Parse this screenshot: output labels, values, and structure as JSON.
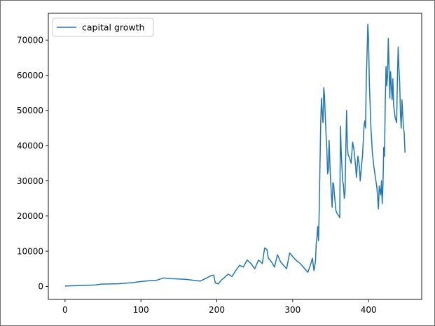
{
  "chart_data": {
    "type": "line",
    "title": "",
    "xlabel": "",
    "ylabel": "",
    "xlim": [
      -22,
      470
    ],
    "ylim": [
      -3700,
      77600
    ],
    "grid": false,
    "legend_position": "top-left",
    "xticks": [
      0,
      100,
      200,
      300,
      400
    ],
    "yticks": [
      0,
      10000,
      20000,
      30000,
      40000,
      50000,
      60000,
      70000
    ],
    "series": [
      {
        "name": "capital growth",
        "color": "#1f77b4",
        "points": [
          [
            0,
            100
          ],
          [
            20,
            250
          ],
          [
            40,
            400
          ],
          [
            48,
            650
          ],
          [
            70,
            750
          ],
          [
            90,
            1100
          ],
          [
            100,
            1400
          ],
          [
            110,
            1600
          ],
          [
            120,
            1700
          ],
          [
            130,
            2400
          ],
          [
            140,
            2200
          ],
          [
            160,
            2000
          ],
          [
            178,
            1500
          ],
          [
            185,
            2200
          ],
          [
            192,
            3000
          ],
          [
            196,
            3200
          ],
          [
            198,
            1000
          ],
          [
            202,
            700
          ],
          [
            206,
            1800
          ],
          [
            210,
            2500
          ],
          [
            215,
            3500
          ],
          [
            220,
            2800
          ],
          [
            225,
            4500
          ],
          [
            230,
            6000
          ],
          [
            235,
            5500
          ],
          [
            240,
            7500
          ],
          [
            245,
            6500
          ],
          [
            250,
            5000
          ],
          [
            255,
            7500
          ],
          [
            260,
            6500
          ],
          [
            263,
            10900
          ],
          [
            266,
            10500
          ],
          [
            268,
            8000
          ],
          [
            272,
            7000
          ],
          [
            276,
            5500
          ],
          [
            280,
            9000
          ],
          [
            284,
            7000
          ],
          [
            288,
            6000
          ],
          [
            292,
            5000
          ],
          [
            296,
            9500
          ],
          [
            300,
            8500
          ],
          [
            304,
            7500
          ],
          [
            310,
            6500
          ],
          [
            316,
            5000
          ],
          [
            320,
            4000
          ],
          [
            324,
            6500
          ],
          [
            326,
            8000
          ],
          [
            328,
            4500
          ],
          [
            330,
            7000
          ],
          [
            331,
            12000
          ],
          [
            332,
            14000
          ],
          [
            333,
            17000
          ],
          [
            334,
            13000
          ],
          [
            335,
            22000
          ],
          [
            336,
            35000
          ],
          [
            337,
            47000
          ],
          [
            338,
            53500
          ],
          [
            339,
            49000
          ],
          [
            340,
            46500
          ],
          [
            341,
            56500
          ],
          [
            342,
            54000
          ],
          [
            343,
            48000
          ],
          [
            344,
            43000
          ],
          [
            345,
            39000
          ],
          [
            346,
            32000
          ],
          [
            347,
            33000
          ],
          [
            348,
            41500
          ],
          [
            349,
            35000
          ],
          [
            350,
            30000
          ],
          [
            351,
            26000
          ],
          [
            352,
            22500
          ],
          [
            353,
            29500
          ],
          [
            354,
            29000
          ],
          [
            355,
            26000
          ],
          [
            357,
            21500
          ],
          [
            359,
            20500
          ],
          [
            361,
            20000
          ],
          [
            362,
            19500
          ],
          [
            363,
            45500
          ],
          [
            364,
            38000
          ],
          [
            365,
            33500
          ],
          [
            366,
            30000
          ],
          [
            367,
            28500
          ],
          [
            368,
            25000
          ],
          [
            369,
            27000
          ],
          [
            371,
            50000
          ],
          [
            372,
            40000
          ],
          [
            373,
            37500
          ],
          [
            375,
            36500
          ],
          [
            377,
            35000
          ],
          [
            379,
            41000
          ],
          [
            381,
            38500
          ],
          [
            383,
            34000
          ],
          [
            384,
            31000
          ],
          [
            386,
            37000
          ],
          [
            388,
            34000
          ],
          [
            389,
            30000
          ],
          [
            391,
            35000
          ],
          [
            392,
            37000
          ],
          [
            394,
            45500
          ],
          [
            395,
            47000
          ],
          [
            396,
            45000
          ],
          [
            397,
            59000
          ],
          [
            398,
            66000
          ],
          [
            399,
            74500
          ],
          [
            400,
            70000
          ],
          [
            401,
            58000
          ],
          [
            402,
            52000
          ],
          [
            403,
            45500
          ],
          [
            405,
            38000
          ],
          [
            407,
            34000
          ],
          [
            409,
            31000
          ],
          [
            411,
            28000
          ],
          [
            413,
            22000
          ],
          [
            414,
            28500
          ],
          [
            416,
            26000
          ],
          [
            417,
            30000
          ],
          [
            418,
            23500
          ],
          [
            419,
            29000
          ],
          [
            420,
            39500
          ],
          [
            421,
            37000
          ],
          [
            422,
            52000
          ],
          [
            423,
            62500
          ],
          [
            424,
            57000
          ],
          [
            425,
            60000
          ],
          [
            426,
            70500
          ],
          [
            427,
            62000
          ],
          [
            428,
            53500
          ],
          [
            429,
            61000
          ],
          [
            430,
            57000
          ],
          [
            431,
            53000
          ],
          [
            432,
            59000
          ],
          [
            433,
            51500
          ],
          [
            435,
            48000
          ],
          [
            437,
            46500
          ],
          [
            438,
            59000
          ],
          [
            439,
            68000
          ],
          [
            440,
            62000
          ],
          [
            441,
            58000
          ],
          [
            442,
            49000
          ],
          [
            443,
            45000
          ],
          [
            444,
            53000
          ],
          [
            445,
            49000
          ],
          [
            446,
            45000
          ],
          [
            447,
            43500
          ],
          [
            448,
            38000
          ]
        ]
      }
    ]
  }
}
